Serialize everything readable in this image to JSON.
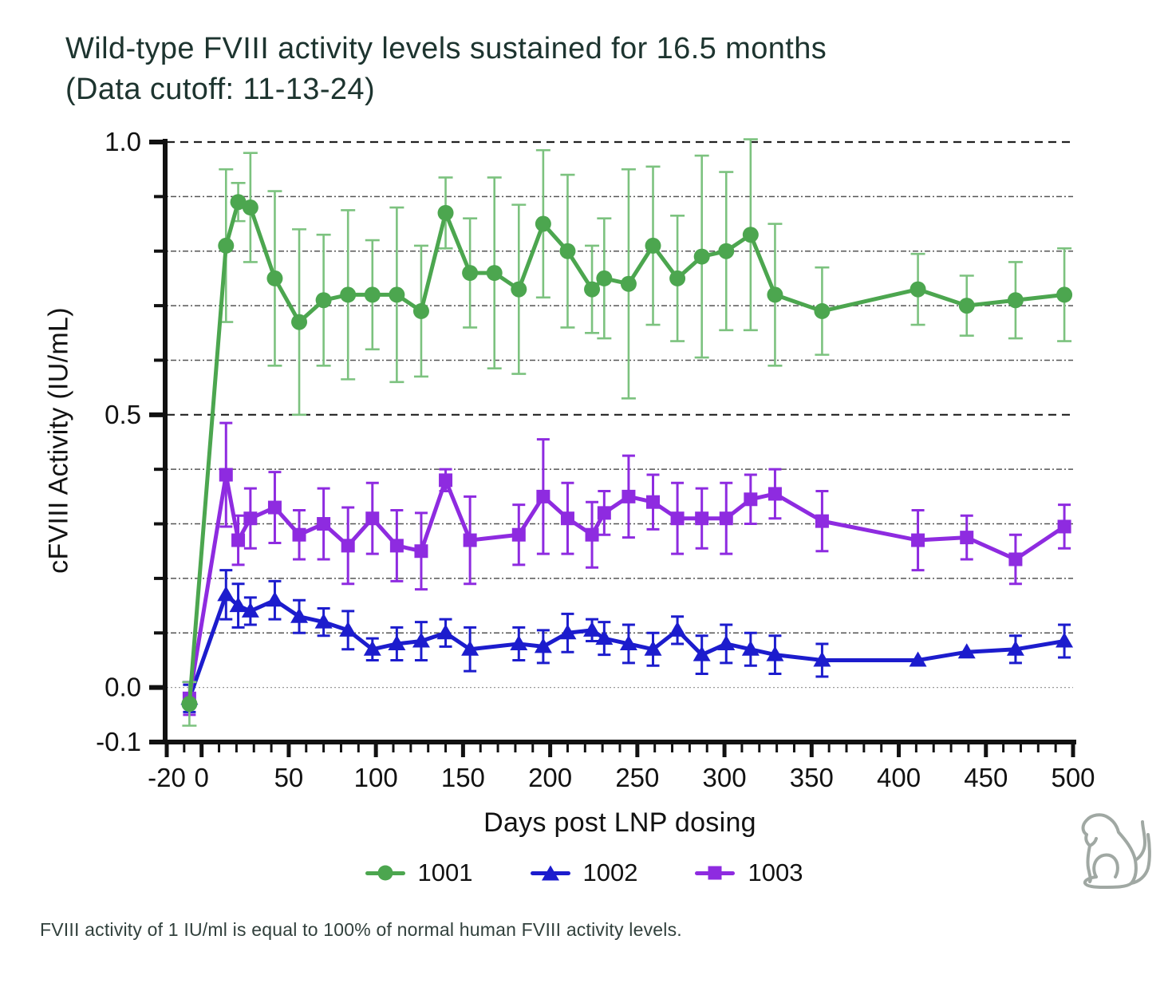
{
  "title": {
    "line1": "Wild-type FVIII activity levels sustained for 16.5 months",
    "line2": "(Data cutoff: 11-13-24)"
  },
  "footnote": {
    "text": "FVIII activity of 1 IU/ml is equal to 100% of normal human FVIII activity levels."
  },
  "legend": {
    "items": [
      {
        "label": "1001",
        "marker": "circle"
      },
      {
        "label": "1002",
        "marker": "triangle"
      },
      {
        "label": "1003",
        "marker": "square"
      }
    ]
  },
  "icons": {
    "monkey": "monkey-outline-logo"
  },
  "colors": {
    "series_1001": "#4ca64f",
    "series_1001_err": "#7cc27f",
    "series_1002": "#1c1ccd",
    "series_1003": "#8e2be0",
    "axis": "#111111",
    "grid_major": "#222222",
    "grid_minor": "#555555",
    "grid_zero": "#9a9a9a",
    "title_text": "#1d342f",
    "monkey": "#a0a8a3"
  },
  "chart_data": {
    "type": "line",
    "title": "Wild-type FVIII activity levels sustained for 16.5 months (Data cutoff: 11-13-24)",
    "xlabel": "Days post LNP dosing",
    "ylabel": "cFVIII Activity (IU/mL)",
    "xlim": [
      -20,
      500
    ],
    "ylim": [
      -0.1,
      1.0
    ],
    "legend_position": "bottom",
    "x_major_ticks": [
      {
        "v": -20,
        "label": "-20"
      },
      {
        "v": 0,
        "label": "0"
      },
      {
        "v": 50,
        "label": "50"
      },
      {
        "v": 100,
        "label": "100"
      },
      {
        "v": 150,
        "label": "150"
      },
      {
        "v": 200,
        "label": "200"
      },
      {
        "v": 250,
        "label": "250"
      },
      {
        "v": 300,
        "label": "300"
      },
      {
        "v": 350,
        "label": "350"
      },
      {
        "v": 400,
        "label": "400"
      },
      {
        "v": 450,
        "label": "450"
      },
      {
        "v": 500,
        "label": "500"
      }
    ],
    "x_minor_step": 10,
    "y_major_ticks": [
      {
        "v": 1.0,
        "label": "1.0"
      },
      {
        "v": 0.5,
        "label": "0.5"
      },
      {
        "v": 0.0,
        "label": "0.0"
      },
      {
        "v": -0.1,
        "label": "-0.1"
      }
    ],
    "y_minor_ticks": [
      0.9,
      0.8,
      0.7,
      0.6,
      0.4,
      0.3,
      0.2,
      0.1
    ],
    "gridlines": {
      "dashed": [
        1.0,
        0.5
      ],
      "dotdash": [
        0.9,
        0.8,
        0.7,
        0.6,
        0.4,
        0.3,
        0.2,
        0.1
      ],
      "faint": [
        0.0
      ]
    },
    "x_days": [
      -7,
      14,
      21,
      28,
      42,
      56,
      70,
      84,
      98,
      112,
      126,
      140,
      154,
      168,
      182,
      196,
      210,
      224,
      231,
      245,
      259,
      273,
      287,
      301,
      315,
      329,
      356,
      411,
      439,
      467,
      495
    ],
    "series": [
      {
        "name": "1002",
        "marker": "triangle",
        "color": "#1c1ccd",
        "err_color": "#1c1ccd",
        "values": [
          -0.02,
          0.17,
          0.15,
          0.14,
          0.16,
          0.13,
          0.12,
          0.105,
          0.07,
          0.08,
          0.085,
          0.1,
          0.07,
          null,
          0.08,
          0.075,
          0.1,
          0.105,
          0.09,
          0.08,
          0.07,
          0.105,
          0.06,
          0.08,
          0.07,
          0.06,
          0.05,
          0.05,
          0.065,
          0.07,
          0.085
        ],
        "errors": [
          0.025,
          0.045,
          0.04,
          0.025,
          0.035,
          0.03,
          0.025,
          0.035,
          0.02,
          0.03,
          0.035,
          0.025,
          0.04,
          0,
          0.03,
          0.03,
          0.035,
          0.02,
          0.03,
          0.035,
          0.03,
          0.025,
          0.035,
          0.035,
          0.03,
          0.035,
          0.03,
          0.01,
          0.01,
          0.025,
          0.03
        ]
      },
      {
        "name": "1003",
        "marker": "square",
        "color": "#8e2be0",
        "err_color": "#8e2be0",
        "values": [
          -0.02,
          0.39,
          0.27,
          0.31,
          0.33,
          0.28,
          0.3,
          0.26,
          0.31,
          0.26,
          0.25,
          0.38,
          0.27,
          null,
          0.28,
          0.35,
          0.31,
          0.28,
          0.32,
          0.35,
          0.34,
          0.31,
          0.31,
          0.31,
          0.345,
          0.355,
          0.305,
          0.27,
          0.275,
          0.235,
          0.295
        ],
        "errors": [
          0.03,
          0.095,
          0.045,
          0.055,
          0.065,
          0.045,
          0.065,
          0.07,
          0.065,
          0.065,
          0.07,
          0.02,
          0.08,
          0,
          0.055,
          0.105,
          0.065,
          0.06,
          0.04,
          0.075,
          0.05,
          0.065,
          0.055,
          0.065,
          0.045,
          0.045,
          0.055,
          0.055,
          0.04,
          0.045,
          0.04
        ]
      },
      {
        "name": "1001",
        "marker": "circle",
        "color": "#4ca64f",
        "err_color": "#7cc27f",
        "values": [
          -0.03,
          0.81,
          0.89,
          0.88,
          0.75,
          0.67,
          0.71,
          0.72,
          0.72,
          0.72,
          0.69,
          0.87,
          0.76,
          0.76,
          0.73,
          0.85,
          0.8,
          0.73,
          0.75,
          0.74,
          0.81,
          0.75,
          0.79,
          0.8,
          0.83,
          0.72,
          0.69,
          0.73,
          0.7,
          0.71,
          0.72
        ],
        "errors": [
          0.04,
          0.14,
          0.035,
          0.1,
          0.16,
          0.17,
          0.12,
          0.155,
          0.1,
          0.16,
          0.12,
          0.065,
          0.1,
          0.175,
          0.155,
          0.135,
          0.14,
          0.08,
          0.11,
          0.21,
          0.145,
          0.115,
          0.185,
          0.145,
          0.175,
          0.13,
          0.08,
          0.065,
          0.055,
          0.07,
          0.085
        ]
      }
    ]
  }
}
